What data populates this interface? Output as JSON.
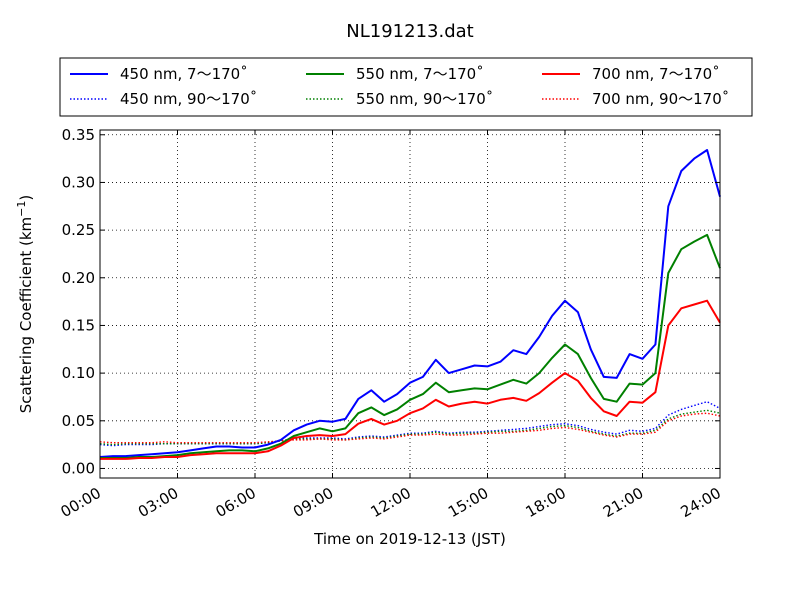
{
  "chart_data": {
    "type": "line",
    "title": "NL191213.dat",
    "xlabel": "Time on 2019-12-13 (JST)",
    "ylabel": "Scattering Coefficient (km",
    "ylabel_sup": "−1",
    "ylabel_end": ")",
    "xlim": [
      "00:00",
      "24:00"
    ],
    "ylim": [
      -0.01,
      0.355
    ],
    "x_ticks": [
      "00:00",
      "03:00",
      "06:00",
      "09:00",
      "12:00",
      "15:00",
      "18:00",
      "21:00",
      "24:00"
    ],
    "y_ticks": [
      "0.00",
      "0.05",
      "0.10",
      "0.15",
      "0.20",
      "0.25",
      "0.30",
      "0.35"
    ],
    "grid": true,
    "legend_position": "top",
    "x": [
      "00:00",
      "00:30",
      "01:00",
      "01:30",
      "02:00",
      "02:30",
      "03:00",
      "03:30",
      "04:00",
      "04:30",
      "05:00",
      "05:30",
      "06:00",
      "06:30",
      "07:00",
      "07:30",
      "08:00",
      "08:30",
      "09:00",
      "09:30",
      "10:00",
      "10:30",
      "11:00",
      "11:30",
      "12:00",
      "12:30",
      "13:00",
      "13:30",
      "14:00",
      "14:30",
      "15:00",
      "15:30",
      "16:00",
      "16:30",
      "17:00",
      "17:30",
      "18:00",
      "18:30",
      "19:00",
      "19:30",
      "20:00",
      "20:30",
      "21:00",
      "21:30",
      "22:00",
      "22:30",
      "23:00",
      "23:30",
      "24:00"
    ],
    "series": [
      {
        "name": "450 nm, 7～170˚",
        "color": "#0000ff",
        "style": "solid",
        "values": [
          0.012,
          0.013,
          0.013,
          0.014,
          0.015,
          0.016,
          0.017,
          0.019,
          0.021,
          0.023,
          0.023,
          0.022,
          0.022,
          0.025,
          0.03,
          0.04,
          0.046,
          0.05,
          0.049,
          0.052,
          0.073,
          0.082,
          0.07,
          0.078,
          0.09,
          0.096,
          0.114,
          0.1,
          0.104,
          0.108,
          0.107,
          0.112,
          0.124,
          0.12,
          0.138,
          0.16,
          0.176,
          0.164,
          0.125,
          0.096,
          0.095,
          0.12,
          0.115,
          0.13,
          0.275,
          0.312,
          0.325,
          0.334,
          0.285
        ]
      },
      {
        "name": "550 nm, 7～170˚",
        "color": "#008000",
        "style": "solid",
        "values": [
          0.011,
          0.011,
          0.011,
          0.012,
          0.012,
          0.013,
          0.014,
          0.016,
          0.017,
          0.018,
          0.019,
          0.019,
          0.018,
          0.021,
          0.026,
          0.034,
          0.038,
          0.042,
          0.039,
          0.042,
          0.058,
          0.064,
          0.056,
          0.062,
          0.072,
          0.078,
          0.09,
          0.08,
          0.082,
          0.084,
          0.083,
          0.088,
          0.093,
          0.089,
          0.1,
          0.116,
          0.13,
          0.12,
          0.095,
          0.073,
          0.07,
          0.089,
          0.088,
          0.1,
          0.205,
          0.23,
          0.238,
          0.245,
          0.21
        ]
      },
      {
        "name": "700 nm, 7～170˚",
        "color": "#ff0000",
        "style": "solid",
        "values": [
          0.01,
          0.01,
          0.01,
          0.011,
          0.011,
          0.012,
          0.012,
          0.014,
          0.015,
          0.016,
          0.016,
          0.016,
          0.016,
          0.018,
          0.024,
          0.032,
          0.034,
          0.035,
          0.034,
          0.036,
          0.047,
          0.052,
          0.046,
          0.05,
          0.058,
          0.063,
          0.072,
          0.065,
          0.068,
          0.07,
          0.068,
          0.072,
          0.074,
          0.071,
          0.079,
          0.09,
          0.1,
          0.092,
          0.074,
          0.06,
          0.055,
          0.07,
          0.069,
          0.08,
          0.15,
          0.168,
          0.172,
          0.176,
          0.153
        ]
      },
      {
        "name": "450 nm, 90～170˚",
        "color": "#0000ff",
        "style": "dotted",
        "values": [
          0.025,
          0.024,
          0.025,
          0.025,
          0.025,
          0.026,
          0.026,
          0.026,
          0.026,
          0.026,
          0.026,
          0.026,
          0.026,
          0.027,
          0.029,
          0.031,
          0.032,
          0.032,
          0.032,
          0.031,
          0.033,
          0.034,
          0.033,
          0.035,
          0.037,
          0.037,
          0.039,
          0.037,
          0.038,
          0.038,
          0.039,
          0.04,
          0.041,
          0.042,
          0.044,
          0.046,
          0.047,
          0.045,
          0.041,
          0.038,
          0.036,
          0.04,
          0.039,
          0.042,
          0.056,
          0.062,
          0.066,
          0.07,
          0.063
        ]
      },
      {
        "name": "550 nm, 90～170˚",
        "color": "#008000",
        "style": "dotted",
        "values": [
          0.026,
          0.025,
          0.026,
          0.026,
          0.026,
          0.026,
          0.026,
          0.026,
          0.026,
          0.026,
          0.026,
          0.026,
          0.026,
          0.027,
          0.029,
          0.031,
          0.031,
          0.031,
          0.031,
          0.03,
          0.032,
          0.033,
          0.032,
          0.034,
          0.036,
          0.036,
          0.038,
          0.036,
          0.037,
          0.037,
          0.038,
          0.039,
          0.039,
          0.04,
          0.042,
          0.044,
          0.045,
          0.043,
          0.039,
          0.036,
          0.034,
          0.037,
          0.037,
          0.04,
          0.052,
          0.057,
          0.059,
          0.061,
          0.058
        ]
      },
      {
        "name": "700 nm, 90～170˚",
        "color": "#ff0000",
        "style": "dotted",
        "values": [
          0.028,
          0.027,
          0.027,
          0.027,
          0.027,
          0.028,
          0.027,
          0.027,
          0.027,
          0.027,
          0.027,
          0.027,
          0.027,
          0.028,
          0.029,
          0.03,
          0.03,
          0.031,
          0.03,
          0.03,
          0.031,
          0.032,
          0.031,
          0.033,
          0.035,
          0.035,
          0.036,
          0.035,
          0.035,
          0.036,
          0.037,
          0.037,
          0.038,
          0.039,
          0.04,
          0.042,
          0.043,
          0.041,
          0.038,
          0.035,
          0.033,
          0.036,
          0.036,
          0.038,
          0.05,
          0.055,
          0.057,
          0.058,
          0.055
        ]
      }
    ]
  }
}
